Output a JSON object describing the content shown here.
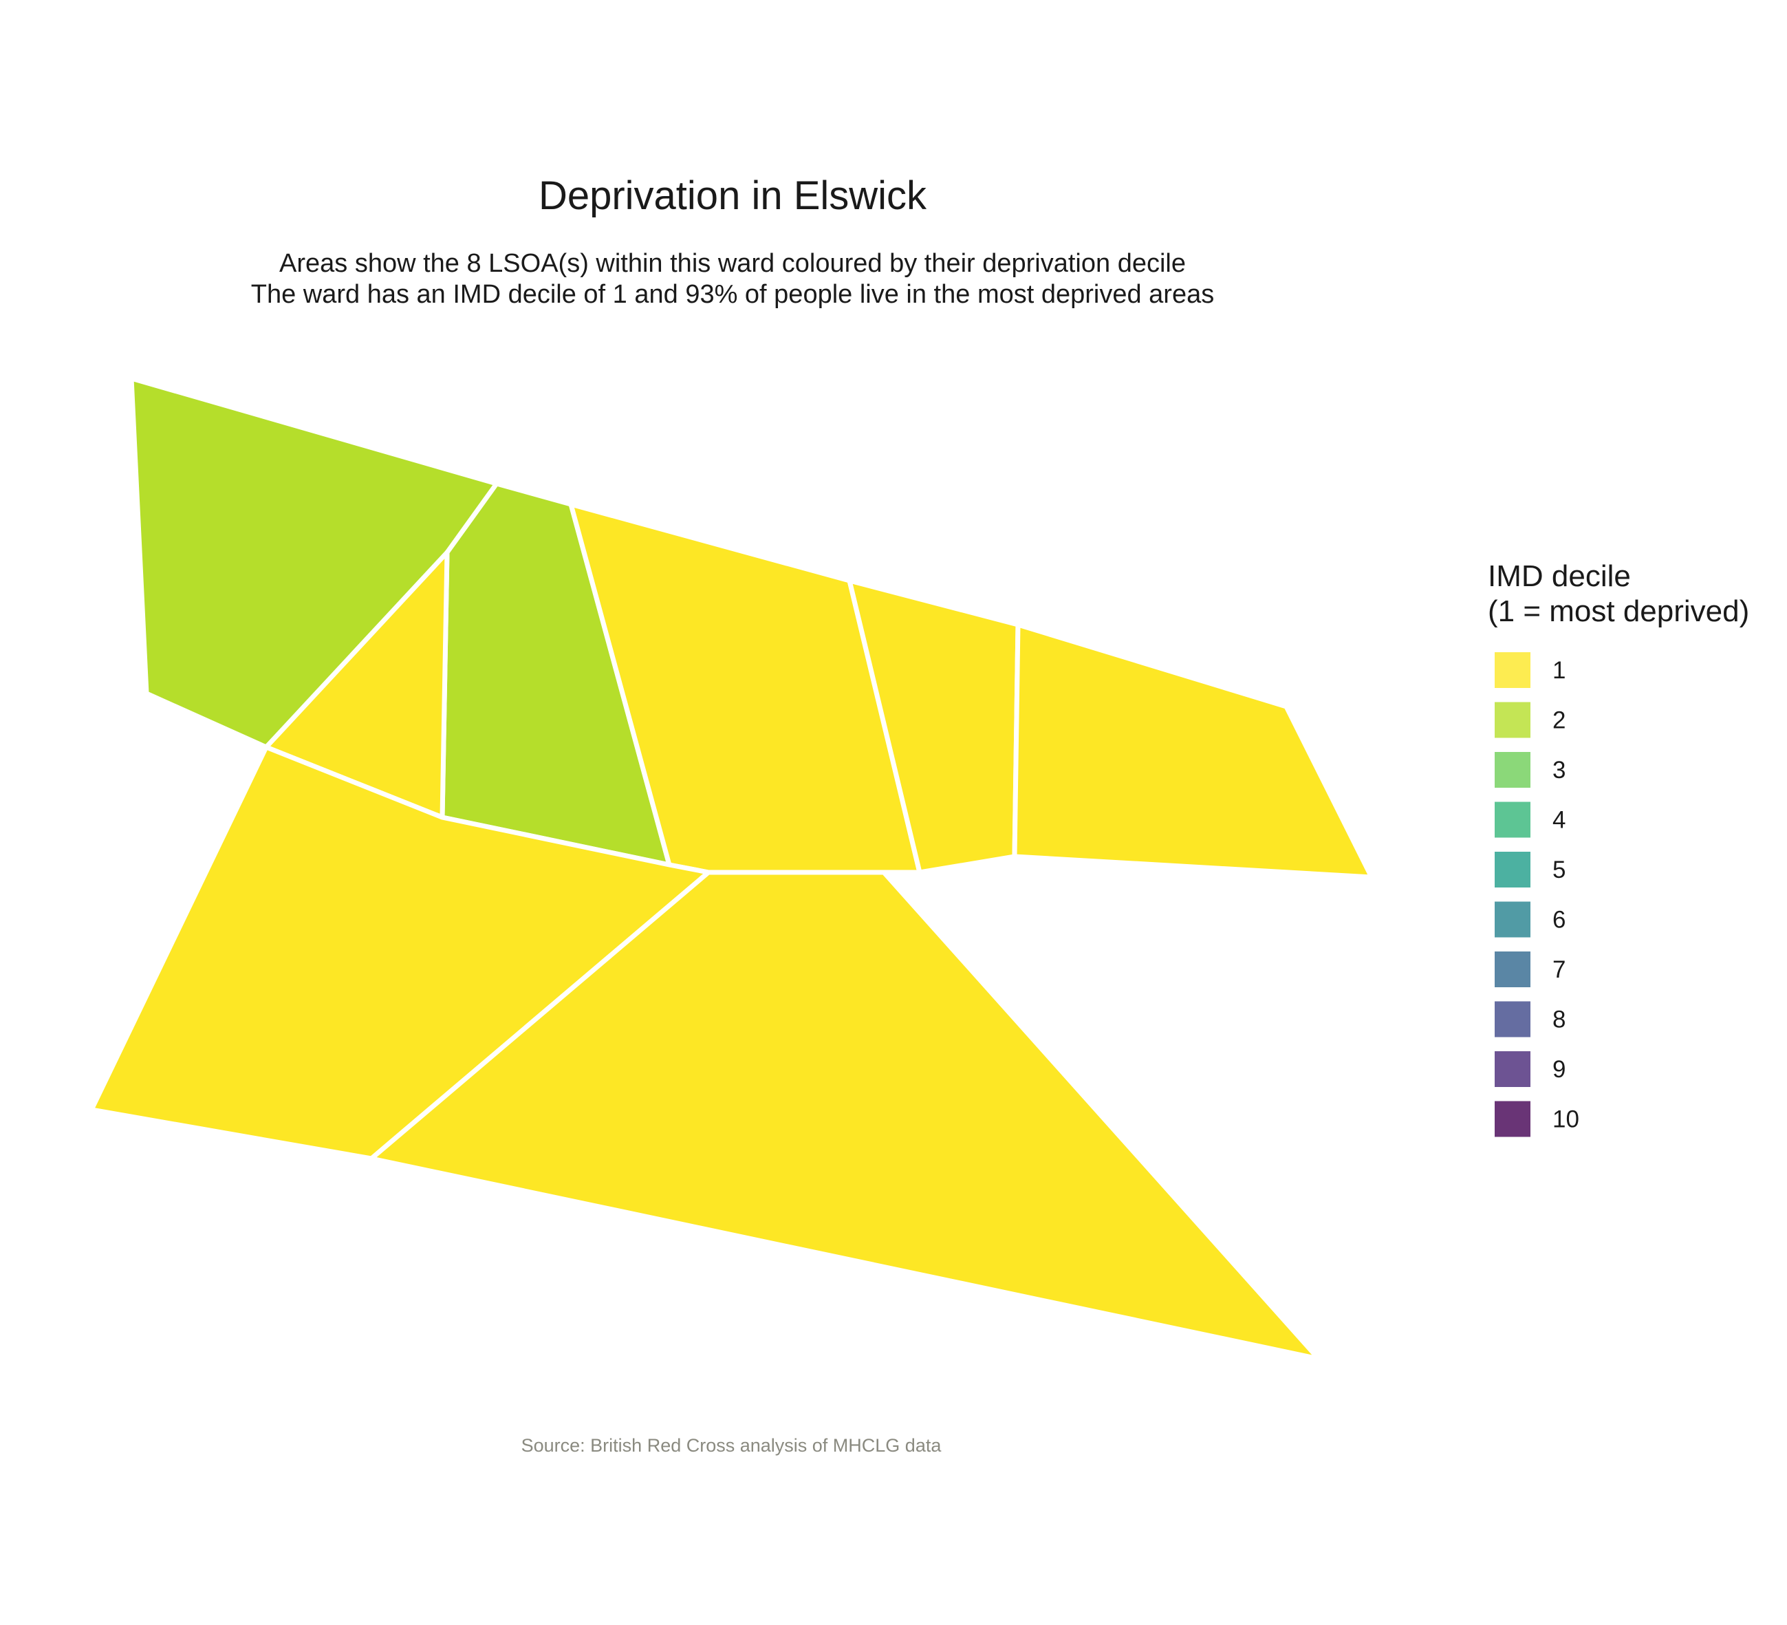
{
  "title": "Deprivation in Elswick",
  "subtitle_line1": "Areas show the 8 LSOA(s) within this ward coloured by their deprivation decile",
  "subtitle_line2": "The ward has an IMD decile of 1 and 93% of people live in the most deprived areas",
  "caption": "Source: British Red Cross analysis of MHCLG data",
  "legend": {
    "title_line1": "IMD decile",
    "title_line2": "(1 = most deprived)",
    "items": [
      {
        "label": "1",
        "color": "#FDE725"
      },
      {
        "label": "2",
        "color": "#B5DE2B"
      },
      {
        "label": "3",
        "color": "#6ECE58"
      },
      {
        "label": "4",
        "color": "#35B779"
      },
      {
        "label": "5",
        "color": "#1F9E89"
      },
      {
        "label": "6",
        "color": "#26828E"
      },
      {
        "label": "7",
        "color": "#31688E"
      },
      {
        "label": "8",
        "color": "#3E4989"
      },
      {
        "label": "9",
        "color": "#482878"
      },
      {
        "label": "10",
        "color": "#440154"
      }
    ]
  },
  "chart_data": {
    "type": "choropleth",
    "ward": "Elswick",
    "lsoa_count": 8,
    "ward_imd_decile": 1,
    "pct_people_most_deprived": 93,
    "areas": [
      {
        "decile": 2
      },
      {
        "decile": 2
      },
      {
        "decile": 1
      },
      {
        "decile": 1
      },
      {
        "decile": 1
      },
      {
        "decile": 1
      },
      {
        "decile": 1
      },
      {
        "decile": 1
      }
    ]
  }
}
